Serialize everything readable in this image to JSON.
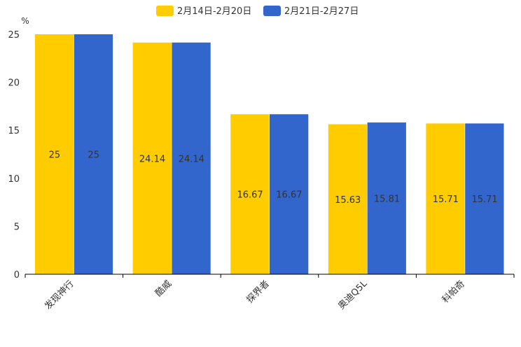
{
  "chart_data": {
    "type": "bar",
    "title": "",
    "xlabel": "",
    "ylabel": "%",
    "ylim": [
      0,
      25
    ],
    "yticks": [
      0,
      5,
      10,
      15,
      20,
      25
    ],
    "grid": false,
    "legend_position": "top-center",
    "categories": [
      "发现神行",
      "酷威",
      "探界者",
      "奥迪Q5L",
      "科帕奇"
    ],
    "series": [
      {
        "name": "2月14日-2月20日",
        "color": "#FFCC00",
        "values": [
          25,
          24.14,
          16.67,
          15.63,
          15.71
        ]
      },
      {
        "name": "2月21日-2月27日",
        "color": "#3366CC",
        "values": [
          25,
          24.14,
          16.67,
          15.81,
          15.71
        ]
      }
    ]
  }
}
